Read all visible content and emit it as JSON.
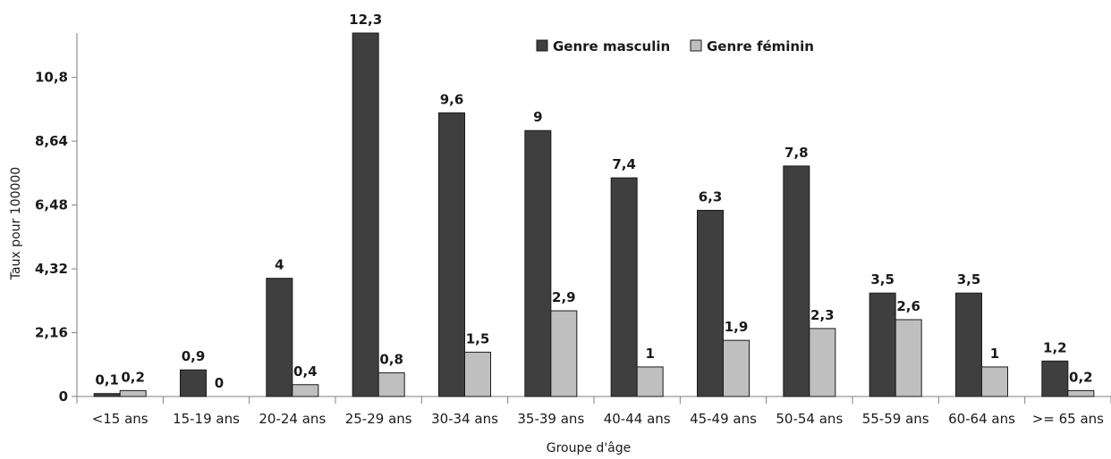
{
  "chart_data": {
    "type": "bar",
    "title": "",
    "xlabel": "Groupe d'âge",
    "ylabel": "Taux pour 100000",
    "ylim": [
      0,
      12.3
    ],
    "yticks": [
      0,
      2.16,
      4.32,
      6.48,
      8.64,
      10.8
    ],
    "ytick_labels": [
      "0",
      "2,16",
      "4,32",
      "6,48",
      "8,64",
      "10,8"
    ],
    "grid": false,
    "legend": "top-center",
    "categories": [
      "<15 ans",
      "15-19 ans",
      "20-24 ans",
      "25-29 ans",
      "30-34 ans",
      "35-39 ans",
      "40-44 ans",
      "45-49 ans",
      "50-54 ans",
      "55-59 ans",
      "60-64 ans",
      ">= 65 ans"
    ],
    "series": [
      {
        "name": "Genre masculin",
        "color": "#3f3f3f",
        "values": [
          0.1,
          0.9,
          4,
          12.3,
          9.6,
          9,
          7.4,
          6.3,
          7.8,
          3.5,
          3.5,
          1.2
        ],
        "labels": [
          "0,1",
          "0,9",
          "4",
          "12,3",
          "9,6",
          "9",
          "7,4",
          "6,3",
          "7,8",
          "3,5",
          "3,5",
          "1,2"
        ]
      },
      {
        "name": "Genre féminin",
        "color": "#bfbfbf",
        "values": [
          0.2,
          0,
          0.4,
          0.8,
          1.5,
          2.9,
          1,
          1.9,
          2.3,
          2.6,
          1,
          0.2
        ],
        "labels": [
          "0,2",
          "0",
          "0,4",
          "0,8",
          "1,5",
          "2,9",
          "1",
          "1,9",
          "2,3",
          "2,6",
          "1",
          "0,2"
        ]
      }
    ]
  }
}
